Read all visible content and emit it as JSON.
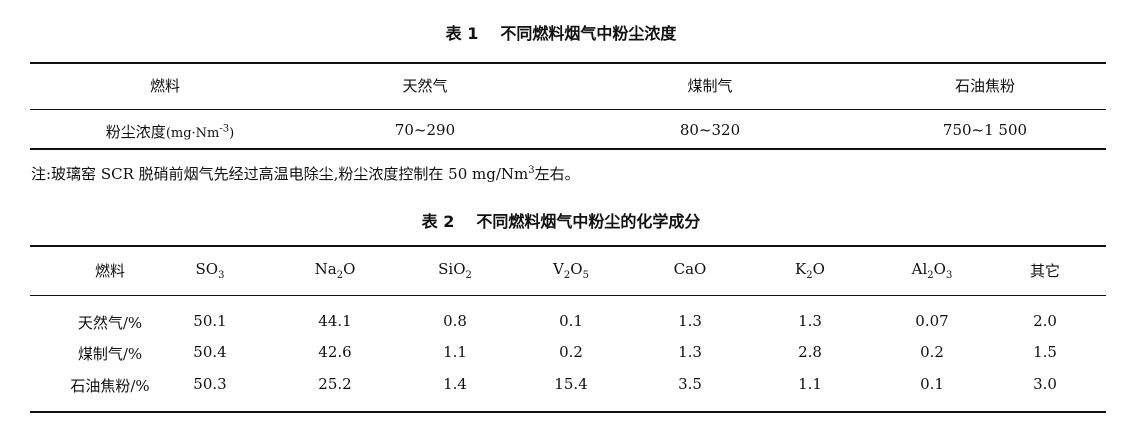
{
  "table1": {
    "title_no": "表 1",
    "title_text": "不同燃料烟气中粉尘浓度",
    "headers": [
      "燃料",
      "天然气",
      "煤制气",
      "石油焦粉"
    ],
    "row": {
      "label": "粉尘浓度",
      "unit_open": "(mg·Nm",
      "unit_sup": "-3",
      "unit_close": ")",
      "values": [
        "70~290",
        "80~320",
        "750~1 500"
      ]
    }
  },
  "note": {
    "prefix": "注:玻璃窑 SCR 脱硝前烟气先经过高温电除尘,粉尘浓度控制在 50 mg/Nm",
    "sup": "3",
    "suffix": "左右。"
  },
  "table2": {
    "title_no": "表 2",
    "title_text": "不同燃料烟气中粉尘的化学成分",
    "headers": {
      "fuel": "燃料",
      "so3": {
        "a": "SO",
        "s": "3"
      },
      "na2o": {
        "a": "Na",
        "s": "2",
        "b": "O"
      },
      "sio2": {
        "a": "SiO",
        "s": "2"
      },
      "v2o5": {
        "a": "V",
        "s1": "2",
        "b": "O",
        "s2": "5"
      },
      "cao": "CaO",
      "k2o": {
        "a": "K",
        "s": "2",
        "b": "O"
      },
      "al2o3": {
        "a": "Al",
        "s1": "2",
        "b": "O",
        "s2": "3"
      },
      "other": "其它"
    },
    "rows": [
      {
        "label": "天然气/%",
        "values": [
          "50.1",
          "44.1",
          "0.8",
          "0.1",
          "1.3",
          "1.3",
          "0.07",
          "2.0"
        ]
      },
      {
        "label": "煤制气/%",
        "values": [
          "50.4",
          "42.6",
          "1.1",
          "0.2",
          "1.3",
          "2.8",
          "0.2",
          "1.5"
        ]
      },
      {
        "label": "石油焦粉/%",
        "values": [
          "50.3",
          "25.2",
          "1.4",
          "15.4",
          "3.5",
          "1.1",
          "0.1",
          "3.0"
        ]
      }
    ]
  }
}
